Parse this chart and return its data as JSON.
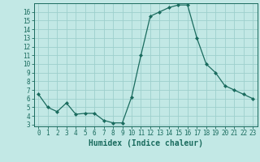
{
  "x": [
    0,
    1,
    2,
    3,
    4,
    5,
    6,
    7,
    8,
    9,
    10,
    11,
    12,
    13,
    14,
    15,
    16,
    17,
    18,
    19,
    20,
    21,
    22,
    23
  ],
  "y": [
    6.5,
    5.0,
    4.5,
    5.5,
    4.2,
    4.3,
    4.3,
    3.5,
    3.2,
    3.2,
    6.2,
    11.0,
    15.5,
    16.0,
    16.5,
    16.8,
    16.8,
    13.0,
    10.0,
    9.0,
    7.5,
    7.0,
    6.5,
    6.0
  ],
  "line_color": "#1a6b5e",
  "marker": "D",
  "marker_size": 2.0,
  "bg_color": "#c2e8e5",
  "grid_color": "#9ecfcc",
  "xlabel": "Humidex (Indice chaleur)",
  "xlim": [
    -0.5,
    23.5
  ],
  "ylim": [
    2.8,
    17.0
  ],
  "yticks": [
    3,
    4,
    5,
    6,
    7,
    8,
    9,
    10,
    11,
    12,
    13,
    14,
    15,
    16
  ],
  "xticks": [
    0,
    1,
    2,
    3,
    4,
    5,
    6,
    7,
    8,
    9,
    10,
    11,
    12,
    13,
    14,
    15,
    16,
    17,
    18,
    19,
    20,
    21,
    22,
    23
  ],
  "tick_label_fontsize": 5.5,
  "xlabel_fontsize": 7.0,
  "linewidth": 0.9
}
